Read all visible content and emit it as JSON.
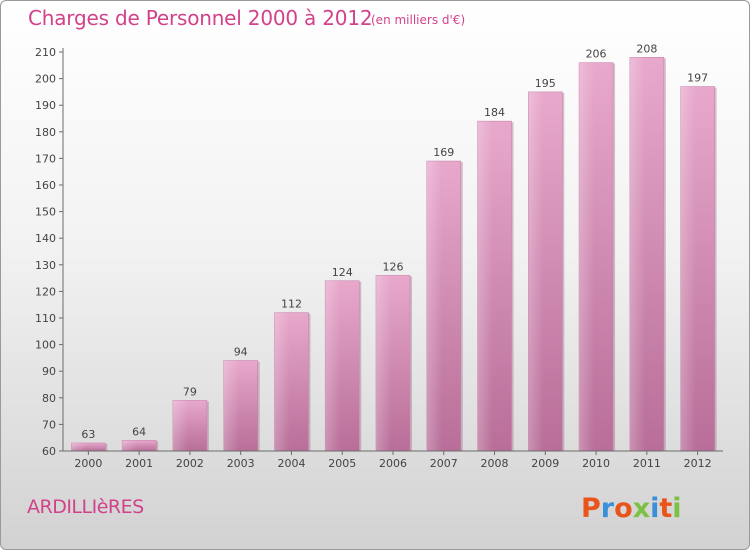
{
  "header": {
    "title": "Charges de Personnel 2000 à 2012",
    "subtitle": "(en milliers d'€)"
  },
  "footer": {
    "commune": "ARDILLIèRES",
    "logo_text": "Proxiti"
  },
  "colors": {
    "accent": "#d2428a",
    "bar_top": "#e8a8cc",
    "bar_bottom": "#b86e98",
    "logo": [
      "#e8541a",
      "#3a8fd9",
      "#e8541a",
      "#7bc142",
      "#3a8fd9",
      "#e8541a",
      "#7bc142"
    ]
  },
  "chart_data": {
    "type": "bar",
    "categories": [
      "2000",
      "2001",
      "2002",
      "2003",
      "2004",
      "2005",
      "2006",
      "2007",
      "2008",
      "2009",
      "2010",
      "2011",
      "2012"
    ],
    "values": [
      63,
      64,
      79,
      94,
      112,
      124,
      126,
      169,
      184,
      195,
      206,
      208,
      197
    ],
    "data_labels": [
      "63",
      "64",
      "79",
      "94",
      "112",
      "124",
      "126",
      "169",
      "184",
      "195",
      "206",
      "208",
      "197"
    ],
    "title": "Charges de Personnel 2000 à 2012",
    "xlabel": "",
    "ylabel": "",
    "ylim": [
      60,
      210
    ],
    "yticks": [
      60,
      70,
      80,
      90,
      100,
      110,
      120,
      130,
      140,
      150,
      160,
      170,
      180,
      190,
      200,
      210
    ],
    "grid": false,
    "legend": "none"
  }
}
